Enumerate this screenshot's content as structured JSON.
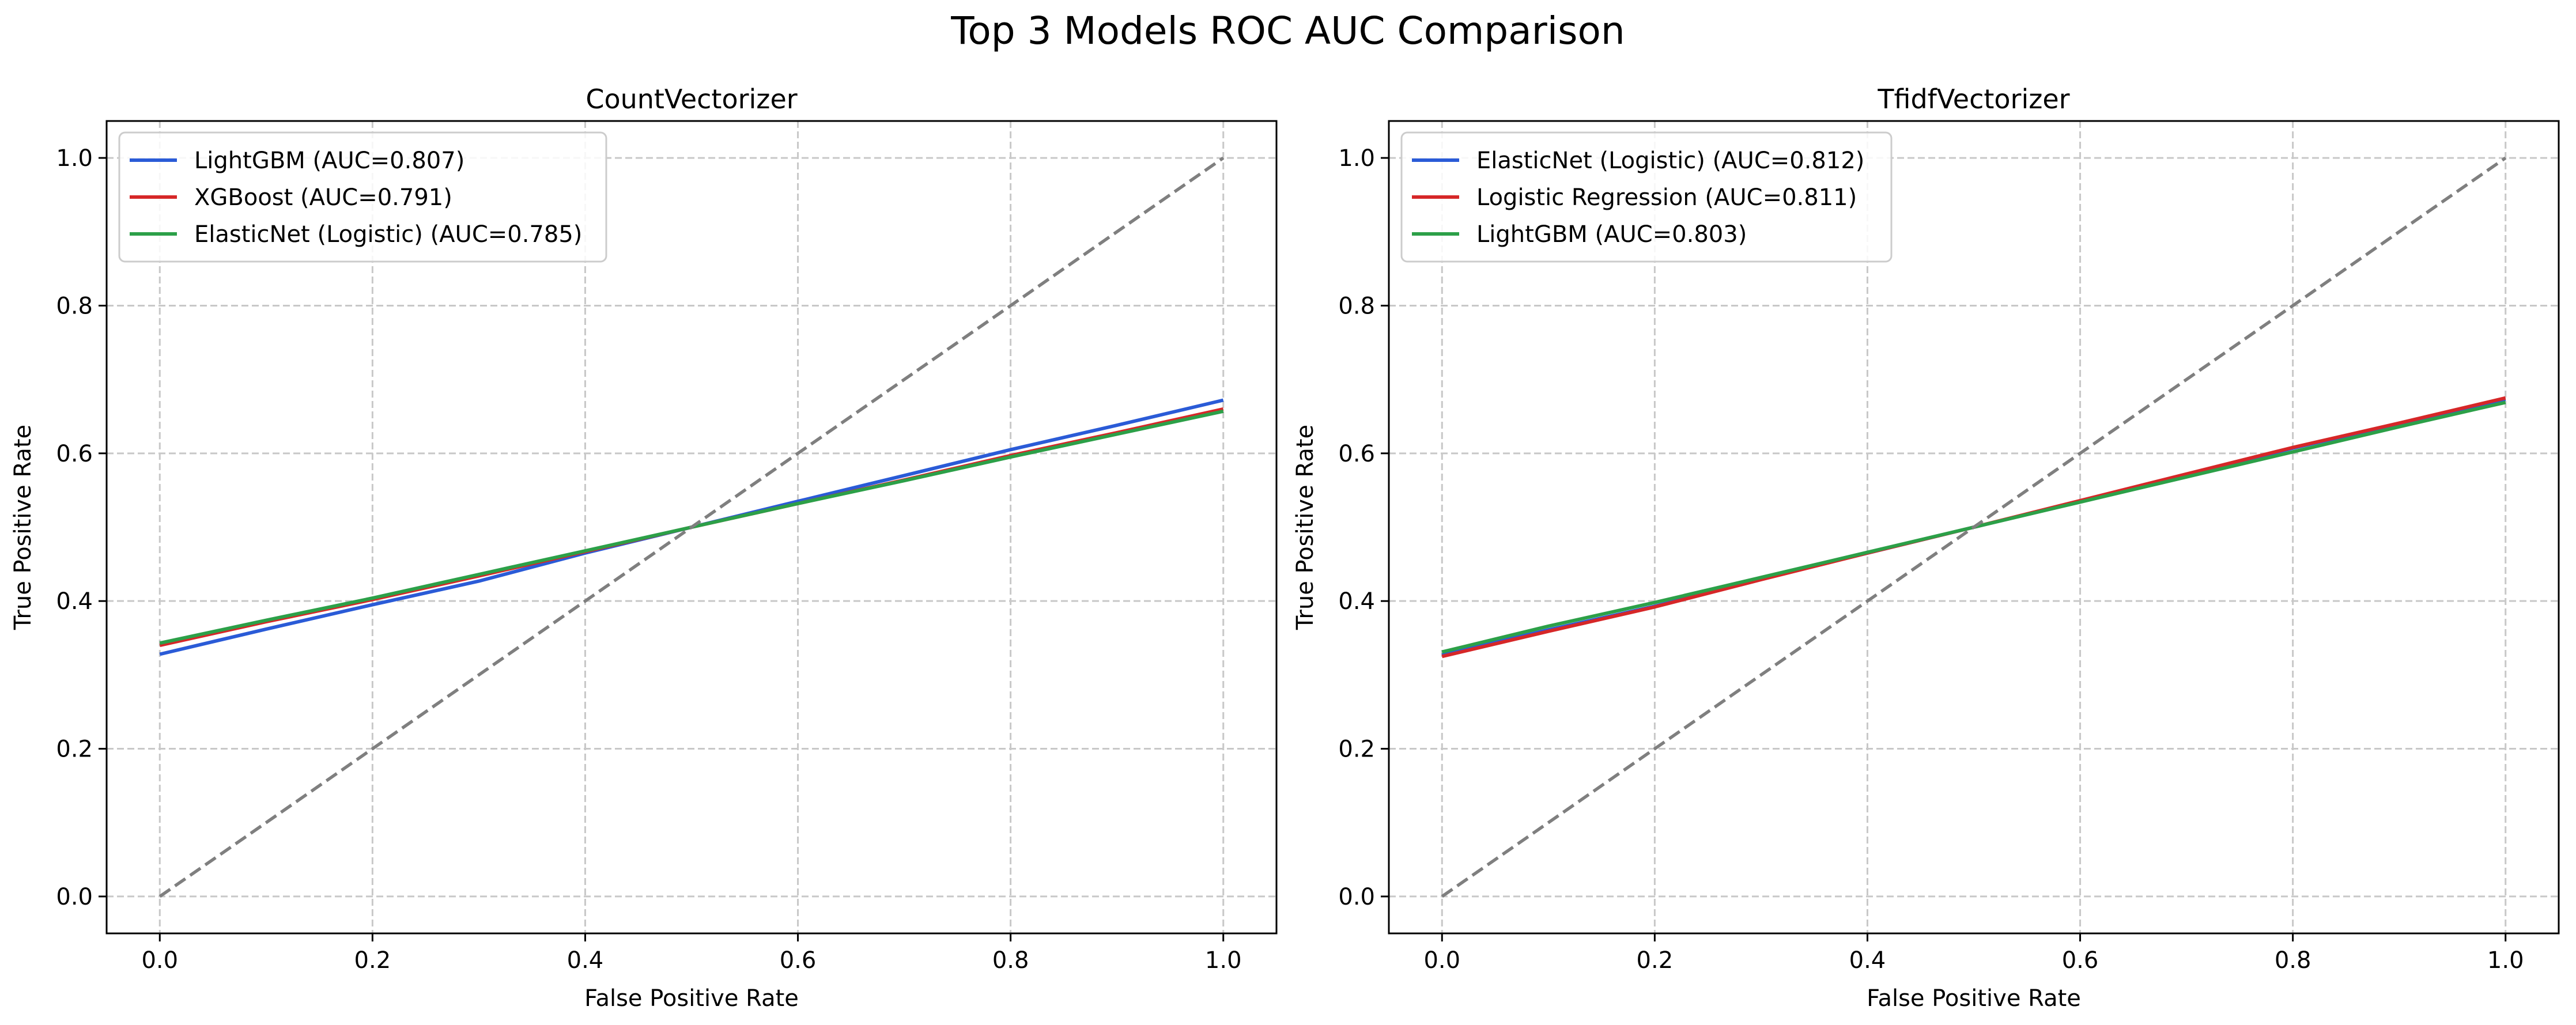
{
  "figure_title": "Top 3 Models ROC AUC Comparison",
  "colors": {
    "blue": "#2a5bd7",
    "red": "#d62728",
    "green": "#2ca048",
    "diagonal": "#7f7f7f",
    "grid": "#c8c8c8"
  },
  "chart_data": [
    {
      "type": "line",
      "title": "CountVectorizer",
      "xlabel": "False Positive Rate",
      "ylabel": "True Positive Rate",
      "xlim": [
        -0.05,
        1.05
      ],
      "ylim": [
        -0.05,
        1.05
      ],
      "x_ticks": [
        "0.0",
        "0.2",
        "0.4",
        "0.6",
        "0.8",
        "1.0"
      ],
      "y_ticks": [
        "0.0",
        "0.2",
        "0.4",
        "0.6",
        "0.8",
        "1.0"
      ],
      "grid": true,
      "legend_position": "upper-left",
      "series": [
        {
          "name": "LightGBM (AUC=0.807)",
          "color": "blue",
          "x": [
            0,
            0.1,
            0.2,
            0.3,
            0.4,
            0.5,
            0.6,
            0.7,
            0.8,
            0.9,
            1.0
          ],
          "y": [
            0.328,
            0.362,
            0.395,
            0.427,
            0.465,
            0.5,
            0.535,
            0.57,
            0.605,
            0.638,
            0.672
          ]
        },
        {
          "name": "XGBoost (AUC=0.791)",
          "color": "red",
          "x": [
            0,
            0.1,
            0.2,
            0.3,
            0.4,
            0.5,
            0.6,
            0.7,
            0.8,
            0.9,
            1.0
          ],
          "y": [
            0.34,
            0.372,
            0.402,
            0.434,
            0.467,
            0.5,
            0.532,
            0.564,
            0.597,
            0.628,
            0.66
          ]
        },
        {
          "name": "ElasticNet (Logistic) (AUC=0.785)",
          "color": "green",
          "x": [
            0,
            0.1,
            0.2,
            0.3,
            0.4,
            0.5,
            0.6,
            0.7,
            0.8,
            0.9,
            1.0
          ],
          "y": [
            0.343,
            0.374,
            0.404,
            0.436,
            0.468,
            0.5,
            0.532,
            0.563,
            0.595,
            0.626,
            0.657
          ]
        },
        {
          "name": "",
          "color": "diagonal",
          "dashed": true,
          "x": [
            0,
            1
          ],
          "y": [
            0,
            1
          ]
        }
      ]
    },
    {
      "type": "line",
      "title": "TfidfVectorizer",
      "xlabel": "False Positive Rate",
      "ylabel": "True Positive Rate",
      "xlim": [
        -0.05,
        1.05
      ],
      "ylim": [
        -0.05,
        1.05
      ],
      "x_ticks": [
        "0.0",
        "0.2",
        "0.4",
        "0.6",
        "0.8",
        "1.0"
      ],
      "y_ticks": [
        "0.0",
        "0.2",
        "0.4",
        "0.6",
        "0.8",
        "1.0"
      ],
      "grid": true,
      "legend_position": "upper-left",
      "series": [
        {
          "name": "ElasticNet (Logistic) (AUC=0.812)",
          "color": "blue",
          "x": [
            0,
            0.1,
            0.2,
            0.3,
            0.4,
            0.5,
            0.6,
            0.7,
            0.8,
            0.9,
            1.0
          ],
          "y": [
            0.327,
            0.361,
            0.393,
            0.43,
            0.465,
            0.5,
            0.535,
            0.57,
            0.607,
            0.64,
            0.673
          ]
        },
        {
          "name": "Logistic Regression (AUC=0.811)",
          "color": "red",
          "x": [
            0,
            0.1,
            0.2,
            0.3,
            0.4,
            0.5,
            0.6,
            0.7,
            0.8,
            0.9,
            1.0
          ],
          "y": [
            0.325,
            0.359,
            0.392,
            0.429,
            0.465,
            0.5,
            0.536,
            0.572,
            0.608,
            0.641,
            0.675
          ]
        },
        {
          "name": "LightGBM (AUC=0.803)",
          "color": "green",
          "x": [
            0,
            0.1,
            0.2,
            0.3,
            0.4,
            0.5,
            0.6,
            0.7,
            0.8,
            0.9,
            1.0
          ],
          "y": [
            0.331,
            0.366,
            0.398,
            0.432,
            0.466,
            0.5,
            0.534,
            0.568,
            0.602,
            0.636,
            0.669
          ]
        },
        {
          "name": "",
          "color": "diagonal",
          "dashed": true,
          "x": [
            0,
            1
          ],
          "y": [
            0,
            1
          ]
        }
      ]
    }
  ]
}
